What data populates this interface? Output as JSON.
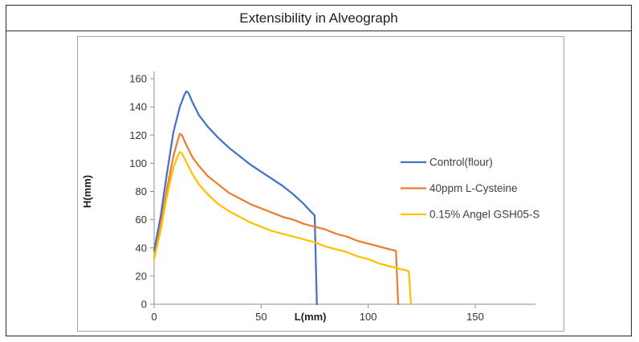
{
  "title": "Extensibility in Alveograph",
  "chart_data": {
    "type": "line",
    "title": "Extensibility in Alveograph",
    "xlabel": "L(mm)",
    "ylabel": "H(mm)",
    "xlim": [
      0,
      150
    ],
    "ylim": [
      0,
      160
    ],
    "x_ticks": [
      0,
      50,
      100,
      150
    ],
    "y_ticks": [
      0,
      20,
      40,
      60,
      80,
      100,
      120,
      140,
      160
    ],
    "grid": false,
    "legend_position": "inside-right",
    "series": [
      {
        "name": "Control(flour)",
        "color": "#4472C4",
        "points": [
          [
            0,
            38
          ],
          [
            3,
            62
          ],
          [
            6,
            93
          ],
          [
            9,
            122
          ],
          [
            12,
            140
          ],
          [
            14,
            148
          ],
          [
            15,
            151
          ],
          [
            16,
            150
          ],
          [
            18,
            143
          ],
          [
            21,
            134
          ],
          [
            25,
            126
          ],
          [
            30,
            118
          ],
          [
            35,
            111
          ],
          [
            40,
            105
          ],
          [
            45,
            99
          ],
          [
            50,
            94
          ],
          [
            55,
            89
          ],
          [
            60,
            84
          ],
          [
            65,
            78
          ],
          [
            70,
            71
          ],
          [
            73,
            66
          ],
          [
            75,
            63
          ],
          [
            76,
            0
          ]
        ]
      },
      {
        "name": "40ppm L-Cysteine",
        "color": "#ED7D31",
        "points": [
          [
            0,
            33
          ],
          [
            3,
            55
          ],
          [
            6,
            82
          ],
          [
            9,
            105
          ],
          [
            11,
            116
          ],
          [
            12,
            121
          ],
          [
            13,
            120
          ],
          [
            15,
            113
          ],
          [
            18,
            104
          ],
          [
            21,
            98
          ],
          [
            25,
            91
          ],
          [
            30,
            85
          ],
          [
            35,
            79
          ],
          [
            40,
            75
          ],
          [
            45,
            71
          ],
          [
            50,
            68
          ],
          [
            55,
            65
          ],
          [
            60,
            62
          ],
          [
            65,
            60
          ],
          [
            70,
            57
          ],
          [
            75,
            55
          ],
          [
            80,
            53
          ],
          [
            85,
            50
          ],
          [
            90,
            48
          ],
          [
            95,
            45
          ],
          [
            100,
            43
          ],
          [
            105,
            41
          ],
          [
            110,
            39
          ],
          [
            113,
            38
          ],
          [
            114,
            0
          ]
        ]
      },
      {
        "name": "0.15% Angel GSH05-S",
        "color": "#FFC000",
        "points": [
          [
            0,
            32
          ],
          [
            3,
            52
          ],
          [
            6,
            77
          ],
          [
            9,
            97
          ],
          [
            11,
            105
          ],
          [
            12,
            108
          ],
          [
            13,
            107
          ],
          [
            15,
            101
          ],
          [
            18,
            92
          ],
          [
            21,
            85
          ],
          [
            25,
            78
          ],
          [
            30,
            71
          ],
          [
            35,
            66
          ],
          [
            40,
            62
          ],
          [
            45,
            58
          ],
          [
            50,
            55
          ],
          [
            55,
            52
          ],
          [
            60,
            50
          ],
          [
            65,
            48
          ],
          [
            70,
            46
          ],
          [
            75,
            44
          ],
          [
            80,
            41
          ],
          [
            85,
            39
          ],
          [
            90,
            37
          ],
          [
            95,
            34
          ],
          [
            100,
            32
          ],
          [
            105,
            29
          ],
          [
            110,
            27
          ],
          [
            115,
            25
          ],
          [
            118,
            24
          ],
          [
            119,
            23
          ],
          [
            120,
            0
          ]
        ]
      }
    ]
  }
}
